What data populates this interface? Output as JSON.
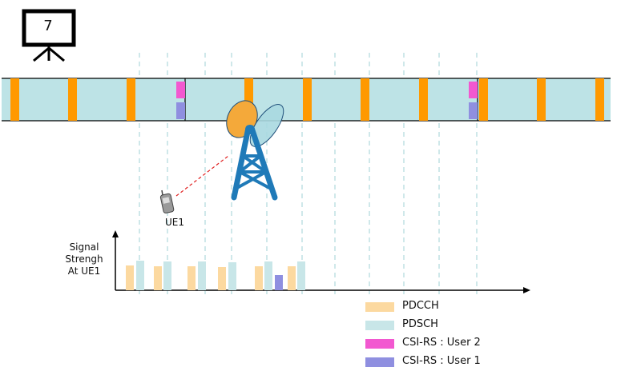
{
  "slide": {
    "number": "7",
    "icon": "presentation-board-icon"
  },
  "ue": {
    "label": "UE1",
    "icon": "mobile-phone-icon"
  },
  "tower": {
    "icon": "cell-tower-icon"
  },
  "signal_chart": {
    "ylabel_lines": [
      "Signal",
      "Strengh",
      "At UE1"
    ]
  },
  "legend": [
    {
      "label": "PDCCH",
      "color": "#fcd9a0"
    },
    {
      "label": "PDSCH",
      "color": "#c8e6e8"
    },
    {
      "label": "CSI-RS : User 2",
      "color": "#f258d0"
    },
    {
      "label": "CSI-RS : User 1",
      "color": "#8f8fe0"
    }
  ],
  "colors": {
    "pdcch": "#ff9900",
    "pdsch": "#bde3e6",
    "csi_user2": "#f258d0",
    "csi_user1": "#8f8fe0",
    "tower": "#1f7ab8",
    "beam_orange": "#f4a93a",
    "beam_blue": "#a8d8e0",
    "grid_dash": "#9fd0d6"
  }
}
